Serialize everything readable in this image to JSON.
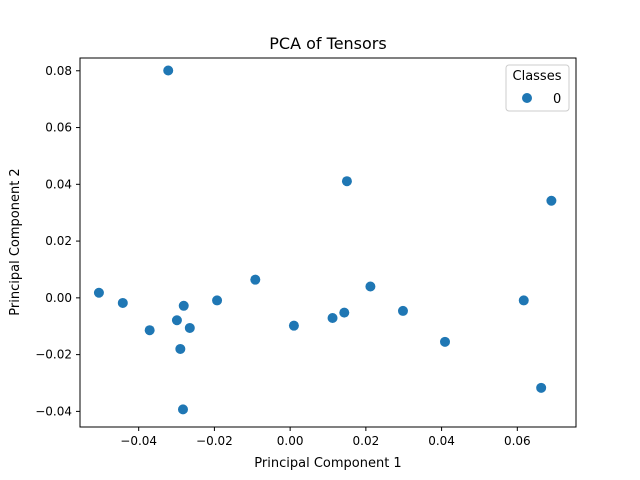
{
  "chart_data": {
    "type": "scatter",
    "title": "PCA of Tensors",
    "xlabel": "Principal Component 1",
    "ylabel": "Principal Component 2",
    "xlim": [
      -0.0555,
      0.0755
    ],
    "ylim": [
      -0.0455,
      0.0845
    ],
    "xticks": [
      -0.04,
      -0.02,
      0.0,
      0.02,
      0.04,
      0.06
    ],
    "xtick_labels": [
      "−0.04",
      "−0.02",
      "0.00",
      "0.02",
      "0.04",
      "0.06"
    ],
    "yticks": [
      -0.04,
      -0.02,
      0.0,
      0.02,
      0.04,
      0.06,
      0.08
    ],
    "ytick_labels": [
      "−0.04",
      "−0.02",
      "0.00",
      "0.02",
      "0.04",
      "0.06",
      "0.08"
    ],
    "grid": false,
    "legend": {
      "title": "Classes",
      "position": "top-right"
    },
    "series": [
      {
        "name": "0",
        "color": "#1f77b4",
        "points": [
          [
            -0.0322,
            0.0801
          ],
          [
            -0.0505,
            0.0018
          ],
          [
            -0.0442,
            -0.0018
          ],
          [
            -0.0371,
            -0.0114
          ],
          [
            -0.0299,
            -0.0079
          ],
          [
            -0.0281,
            -0.0028
          ],
          [
            -0.0265,
            -0.0106
          ],
          [
            -0.029,
            -0.018
          ],
          [
            -0.0283,
            -0.0393
          ],
          [
            -0.0193,
            -0.0009
          ],
          [
            -0.0092,
            0.0064
          ],
          [
            0.001,
            -0.0098
          ],
          [
            0.0112,
            -0.0071
          ],
          [
            0.0143,
            -0.0052
          ],
          [
            0.015,
            0.0411
          ],
          [
            0.0212,
            0.004
          ],
          [
            0.0298,
            -0.0046
          ],
          [
            0.0409,
            -0.0155
          ],
          [
            0.0617,
            -0.0009
          ],
          [
            0.0663,
            -0.0317
          ],
          [
            0.069,
            0.0342
          ]
        ]
      }
    ]
  }
}
